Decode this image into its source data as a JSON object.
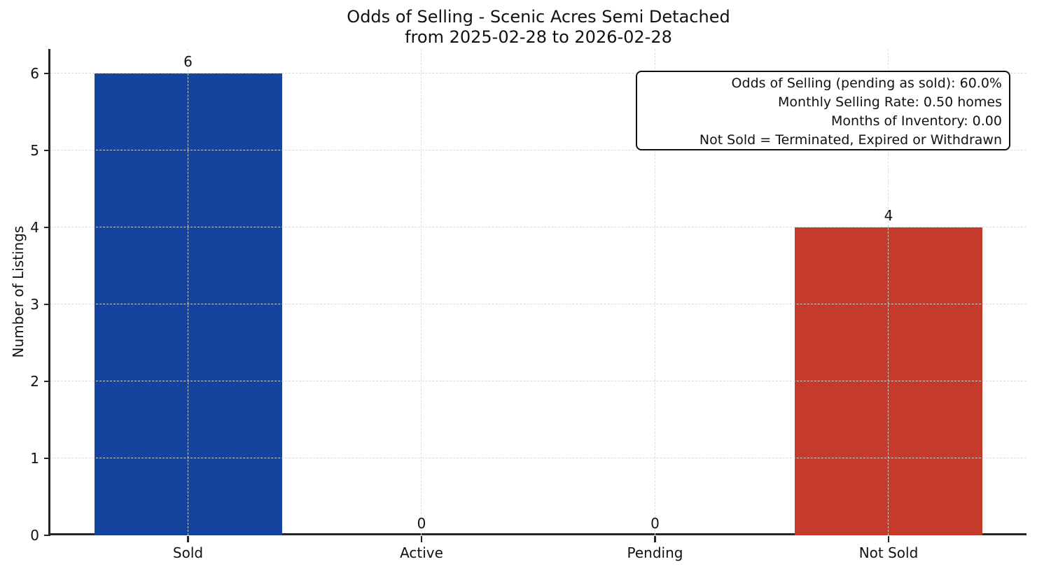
{
  "chart_data": {
    "type": "bar",
    "title": "Odds of Selling - Scenic Acres Semi Detached",
    "subtitle": "from 2025-02-28 to 2026-02-28",
    "categories": [
      "Sold",
      "Active",
      "Pending",
      "Not Sold"
    ],
    "values": [
      6,
      0,
      0,
      4
    ],
    "value_labels": [
      "6",
      "0",
      "0",
      "4"
    ],
    "bar_colors": [
      "#15449E",
      null,
      null,
      "#C43B2C"
    ],
    "xlabel": "",
    "ylabel": "Number of Listings",
    "ylim": [
      0,
      6
    ],
    "ytick_step": 1,
    "grid": "dashed, both axes",
    "legend_position": "none",
    "annotation": {
      "lines": [
        "Odds of Selling (pending as sold): 60.0%",
        "Monthly Selling Rate: 0.50 homes",
        "Months of Inventory: 0.00",
        "Not Sold = Terminated, Expired or Withdrawn"
      ]
    }
  },
  "colors": {
    "sold_bar": "#15449E",
    "not_sold_bar": "#C43B2C",
    "axis_spine": "#262626",
    "gridline": "#D8D8D8",
    "background": "#FFFFFF",
    "text": "#111111"
  }
}
